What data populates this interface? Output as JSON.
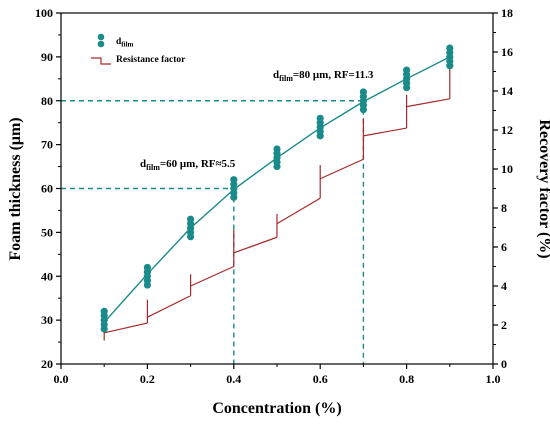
{
  "chart_data": {
    "type": "scatter",
    "xlabel": "Concentration (%)",
    "ylabel_left": "Foam thickness (μm)",
    "ylabel_right": "Recovery factor (%)",
    "xlim": [
      0.0,
      1.0
    ],
    "ylim_left": [
      20,
      100
    ],
    "ylim_right": [
      0,
      18
    ],
    "x_ticks": [
      "0.0",
      "0.2",
      "0.4",
      "0.6",
      "0.8",
      "1.0"
    ],
    "y_left_ticks": [
      "20",
      "30",
      "40",
      "50",
      "60",
      "70",
      "80",
      "90",
      "100"
    ],
    "y_right_ticks": [
      "0",
      "2",
      "4",
      "6",
      "8",
      "10",
      "12",
      "14",
      "16",
      "18"
    ],
    "grid": false,
    "legend_position": "top-left",
    "series": [
      {
        "name": "d_film",
        "name_main": "d",
        "name_sub": "film",
        "kind": "scatter-with-fit",
        "axis": "left",
        "color": "#1a8a8a",
        "points": [
          {
            "x": 0.1,
            "y": [
              28,
              29,
              30,
              31,
              32
            ]
          },
          {
            "x": 0.2,
            "y": [
              38,
              39,
              40,
              41,
              42
            ]
          },
          {
            "x": 0.3,
            "y": [
              49,
              50,
              51,
              52,
              53
            ]
          },
          {
            "x": 0.4,
            "y": [
              58,
              59,
              60,
              61,
              62
            ]
          },
          {
            "x": 0.5,
            "y": [
              65,
              66,
              67,
              68,
              69
            ]
          },
          {
            "x": 0.6,
            "y": [
              72,
              73,
              74,
              75,
              76
            ]
          },
          {
            "x": 0.7,
            "y": [
              78,
              79,
              80,
              81,
              82
            ]
          },
          {
            "x": 0.8,
            "y": [
              83,
              84,
              85,
              86,
              87
            ]
          },
          {
            "x": 0.9,
            "y": [
              88,
              89,
              90,
              91,
              92
            ]
          }
        ],
        "fit_x": [
          0.1,
          0.2,
          0.3,
          0.4,
          0.5,
          0.6,
          0.7,
          0.8,
          0.9
        ],
        "fit_y": [
          29.5,
          40.5,
          51,
          59.8,
          67,
          73.8,
          79.8,
          85,
          90
        ]
      },
      {
        "name": "Resistance factor",
        "kind": "step-with-errorbars",
        "axis": "right",
        "color": "#a52a2a",
        "segments": [
          {
            "x0": 0.1,
            "x1": 0.2,
            "y0": 1.6,
            "y1": 2.1,
            "err": [
              1.2,
              2.8
            ]
          },
          {
            "x0": 0.2,
            "x1": 0.3,
            "y0": 2.4,
            "y1": 3.5,
            "err": [
              2.1,
              3.3
            ]
          },
          {
            "x0": 0.3,
            "x1": 0.4,
            "y0": 4.0,
            "y1": 5.0,
            "err": [
              3.5,
              4.6
            ]
          },
          {
            "x0": 0.4,
            "x1": 0.5,
            "y0": 5.7,
            "y1": 6.5,
            "err": [
              5.0,
              6.9
            ]
          },
          {
            "x0": 0.5,
            "x1": 0.6,
            "y0": 7.2,
            "y1": 8.5,
            "err": [
              6.5,
              7.7
            ]
          },
          {
            "x0": 0.6,
            "x1": 0.7,
            "y0": 9.5,
            "y1": 10.5,
            "err": [
              8.5,
              10.2
            ]
          },
          {
            "x0": 0.7,
            "x1": 0.8,
            "y0": 11.7,
            "y1": 12.1,
            "err": [
              10.5,
              12.6
            ]
          },
          {
            "x0": 0.8,
            "x1": 0.9,
            "y0": 13.2,
            "y1": 13.6,
            "err": [
              12.1,
              13.8
            ]
          },
          {
            "x0": 0.9,
            "x1": 0.9,
            "y0": 15.2,
            "y1": 15.2,
            "err": [
              13.6,
              16.0
            ]
          }
        ]
      }
    ],
    "reference_lines": [
      {
        "axis": "left",
        "x": 0.4,
        "y": 60,
        "color": "#1a8a8a"
      },
      {
        "axis": "right",
        "x": 0.7,
        "y": 13.5,
        "color": "#1a8a8a"
      }
    ],
    "annotations": [
      {
        "main": "d",
        "sub": "film",
        "rest": "=60 μm, RF≈5.5"
      },
      {
        "main": "d",
        "sub": "film",
        "rest": "=80 μm, RF=11.3"
      }
    ]
  }
}
